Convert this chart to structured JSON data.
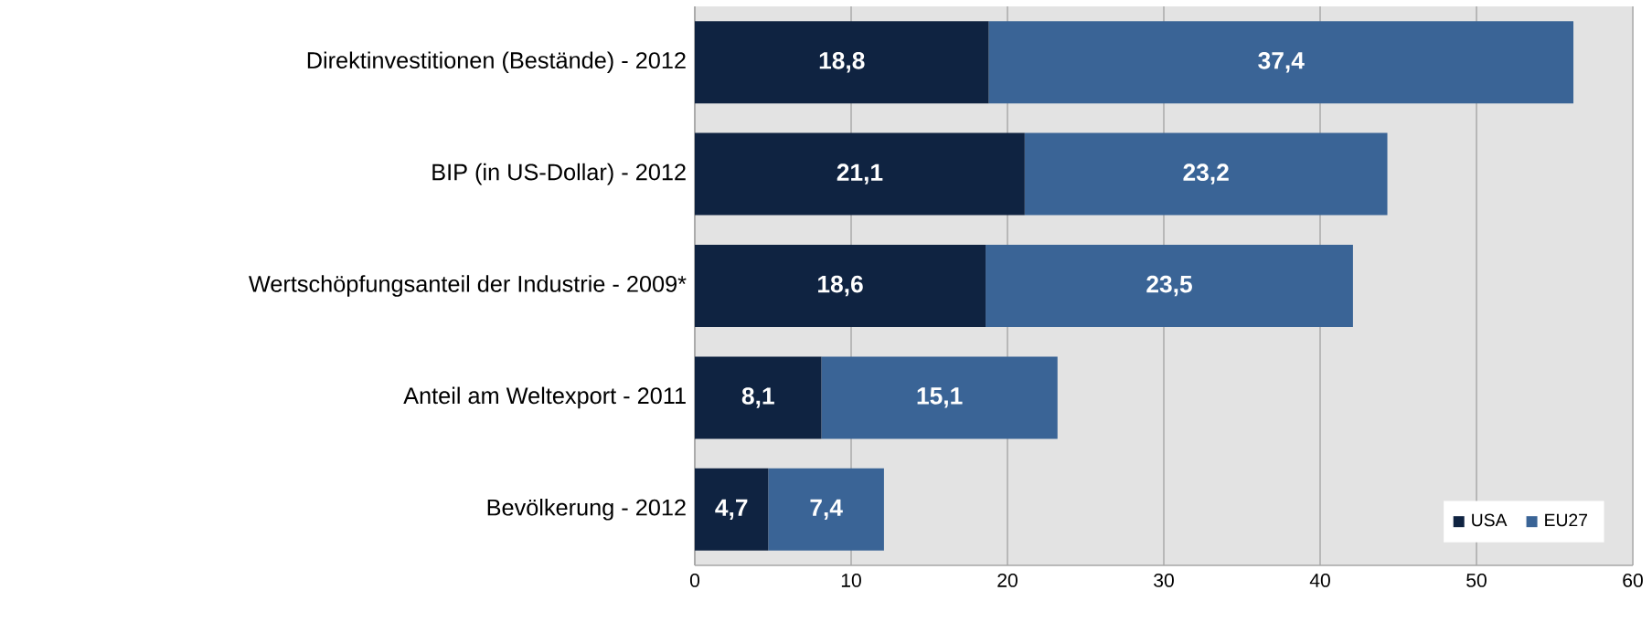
{
  "chart_data": {
    "type": "bar",
    "orientation": "horizontal",
    "stacked": true,
    "categories": [
      "Direktinvestitionen (Bestände) - 2012",
      "BIP (in US-Dollar) - 2012",
      "Wertschöpfungsanteil der Industrie - 2009*",
      "Anteil am Weltexport - 2011",
      "Bevölkerung - 2012"
    ],
    "series": [
      {
        "name": "USA",
        "color": "#0f2341",
        "values": [
          18.8,
          21.1,
          18.6,
          8.1,
          4.7
        ],
        "value_labels": [
          "18,8",
          "21,1",
          "18,6",
          "8,1",
          "4,7"
        ]
      },
      {
        "name": "EU27",
        "color": "#3a6496",
        "values": [
          37.4,
          23.2,
          23.5,
          15.1,
          7.4
        ],
        "value_labels": [
          "37,4",
          "23,2",
          "23,5",
          "15,1",
          "7,4"
        ]
      }
    ],
    "xlim": [
      0,
      60
    ],
    "xticks": [
      0,
      10,
      20,
      30,
      40,
      50,
      60
    ],
    "grid": "x",
    "legend": "bottom right"
  }
}
